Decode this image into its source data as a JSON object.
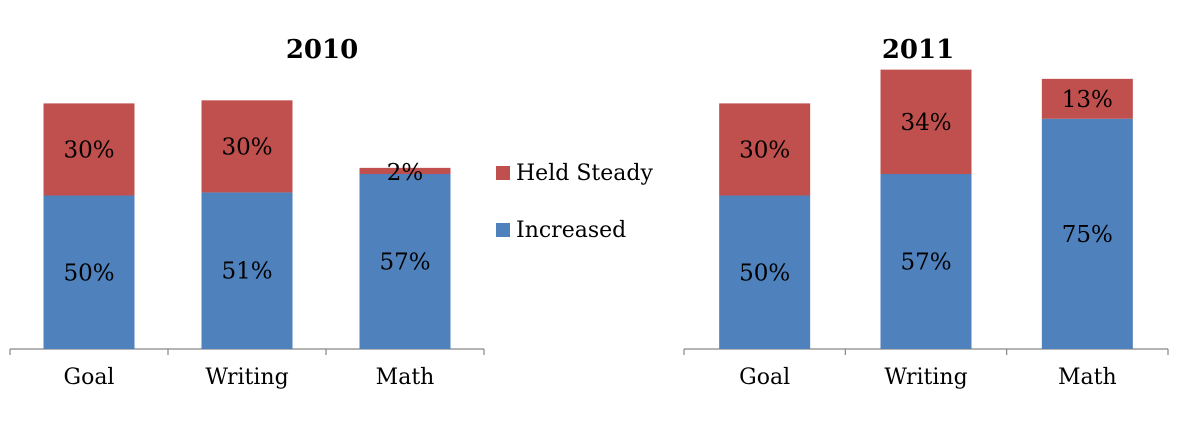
{
  "chart_data": [
    {
      "type": "bar",
      "stacked": true,
      "title": "2010",
      "categories": [
        "Goal",
        "Writing",
        "Math"
      ],
      "series": [
        {
          "name": "Increased",
          "values": [
            50,
            51,
            57
          ],
          "labels": [
            "50%",
            "51%",
            "57%"
          ],
          "color": "#4F81BD"
        },
        {
          "name": "Held Steady",
          "values": [
            30,
            30,
            2
          ],
          "labels": [
            "30%",
            "30%",
            "2%"
          ],
          "color": "#C0504D"
        }
      ],
      "ylim": [
        0,
        100
      ],
      "grid": false
    },
    {
      "type": "bar",
      "stacked": true,
      "title": "2011",
      "categories": [
        "Goal",
        "Writing",
        "Math"
      ],
      "series": [
        {
          "name": "Increased",
          "values": [
            50,
            57,
            75
          ],
          "labels": [
            "50%",
            "57%",
            "75%"
          ],
          "color": "#4F81BD"
        },
        {
          "name": "Held Steady",
          "values": [
            30,
            34,
            13
          ],
          "labels": [
            "30%",
            "34%",
            "13%"
          ],
          "color": "#C0504D"
        }
      ],
      "ylim": [
        0,
        100
      ],
      "grid": false
    }
  ],
  "legend": {
    "placement": "center",
    "items": [
      {
        "label": "Held Steady",
        "color": "#C0504D"
      },
      {
        "label": "Increased",
        "color": "#4F81BD"
      }
    ]
  }
}
